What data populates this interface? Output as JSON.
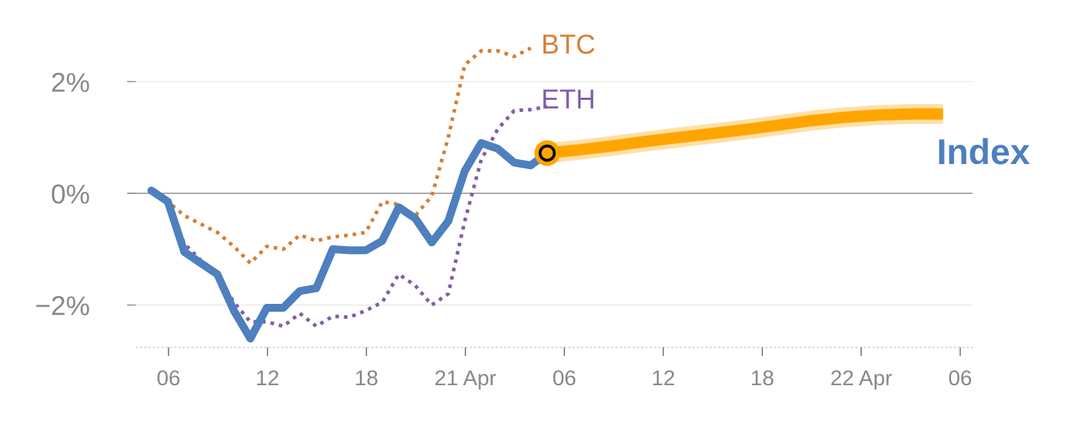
{
  "chart_data": {
    "type": "line",
    "ylim": [
      -2.8,
      3.2
    ],
    "y_ticks": [
      {
        "value": 2,
        "label": "2%"
      },
      {
        "value": 0,
        "label": "0%"
      },
      {
        "value": -2,
        "label": "−2%"
      }
    ],
    "x_ticks": [
      "06",
      "12",
      "18",
      "21 Apr",
      "06",
      "12",
      "18",
      "22 Apr",
      "06"
    ],
    "grid": "horizontal",
    "series": [
      {
        "name": "BTC",
        "style": "dotted",
        "color": "#d77e33",
        "values": [
          0.05,
          -0.15,
          -0.4,
          -0.55,
          -0.7,
          -0.95,
          -1.25,
          -0.95,
          -1.0,
          -0.75,
          -0.85,
          -0.78,
          -0.75,
          -0.7,
          -0.15,
          -0.2,
          -0.4,
          -0.05,
          1.0,
          2.3,
          2.55,
          2.55,
          2.45,
          2.6
        ]
      },
      {
        "name": "ETH",
        "style": "dotted",
        "color": "#7f5fa8",
        "values": [
          0.05,
          -0.15,
          -0.9,
          -1.2,
          -1.45,
          -1.95,
          -2.3,
          -2.3,
          -2.38,
          -2.15,
          -2.38,
          -2.2,
          -2.22,
          -2.1,
          -1.95,
          -1.45,
          -1.65,
          -2.0,
          -1.8,
          -0.5,
          0.6,
          1.15,
          1.48,
          1.5,
          1.55
        ]
      },
      {
        "name": "Index",
        "style": "solid",
        "color": "#4e7fbe",
        "values": [
          0.05,
          -0.15,
          -1.05,
          -1.25,
          -1.45,
          -2.1,
          -2.6,
          -2.05,
          -2.05,
          -1.75,
          -1.7,
          -1.0,
          -1.02,
          -1.02,
          -0.85,
          -0.25,
          -0.45,
          -0.88,
          -0.5,
          0.4,
          0.9,
          0.8,
          0.55,
          0.5,
          0.72
        ]
      },
      {
        "name": "Index forecast",
        "style": "thick",
        "color": "#ffa500",
        "x_start": 24,
        "x_end": 48,
        "values": [
          0.72,
          0.78,
          0.85,
          0.93,
          1.0,
          1.07,
          1.14,
          1.22,
          1.3,
          1.36,
          1.4,
          1.42,
          1.42
        ]
      }
    ],
    "labels": {
      "btc": "BTC",
      "eth": "ETH",
      "index": "Index"
    }
  }
}
